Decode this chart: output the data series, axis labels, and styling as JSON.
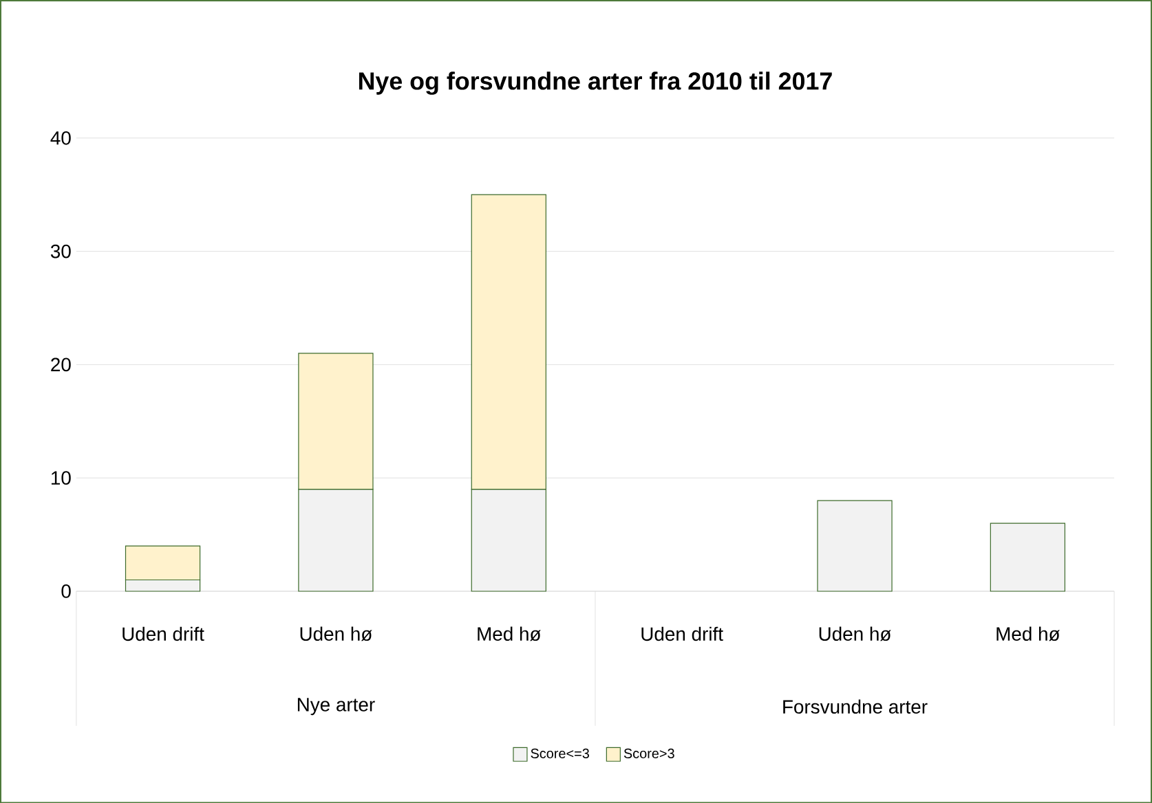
{
  "chart_data": {
    "type": "bar",
    "title": "Nye og forsvundne arter fra 2010 til 2017",
    "stacked": true,
    "categories": [
      "Uden drift",
      "Uden hø",
      "Med hø",
      "Uden drift",
      "Uden hø",
      "Med hø"
    ],
    "series": [
      {
        "name": "Score<=3",
        "color": "#f2f2f2",
        "values": [
          1,
          9,
          9,
          null,
          8,
          6
        ]
      },
      {
        "name": "Score>3",
        "color": "#fff2cc",
        "values": [
          3,
          12,
          26,
          null,
          null,
          null
        ]
      }
    ],
    "annotations": [
      "Nye arter",
      "Forsvundne arter"
    ],
    "ylim": [
      0,
      40
    ],
    "yticks": [
      0,
      10,
      20,
      30,
      40
    ],
    "grid": "y",
    "legend": "bottom"
  }
}
